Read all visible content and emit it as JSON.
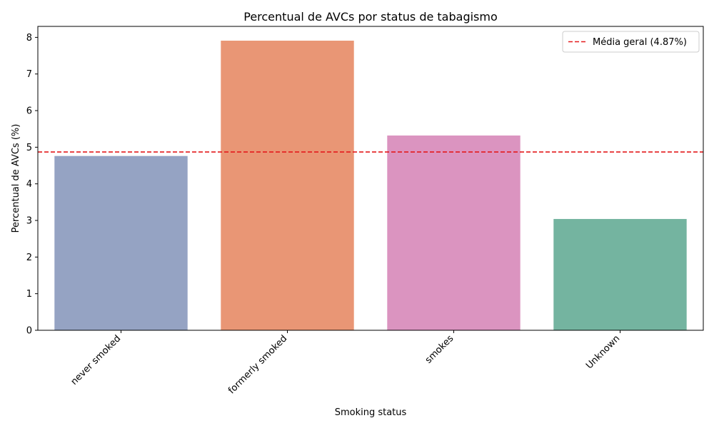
{
  "chart_data": {
    "type": "bar",
    "title": "Percentual de AVCs por status de tabagismo",
    "xlabel": "Smoking status",
    "ylabel": "Percentual de AVCs (%)",
    "categories": [
      "never smoked",
      "formerly smoked",
      "smokes",
      "Unknown"
    ],
    "values": [
      4.76,
      7.91,
      5.32,
      3.04
    ],
    "colors": [
      "#95a3c3",
      "#e99675",
      "#db94c0",
      "#74b4a0"
    ],
    "ylim": [
      0,
      8.3
    ],
    "yticks": [
      0,
      1,
      2,
      3,
      4,
      5,
      6,
      7,
      8
    ],
    "reference_line": {
      "value": 4.87,
      "label": "Média geral (4.87%)",
      "color": "#e41a1c",
      "style": "dashed"
    },
    "legend_position": "top-right",
    "grid": false
  }
}
